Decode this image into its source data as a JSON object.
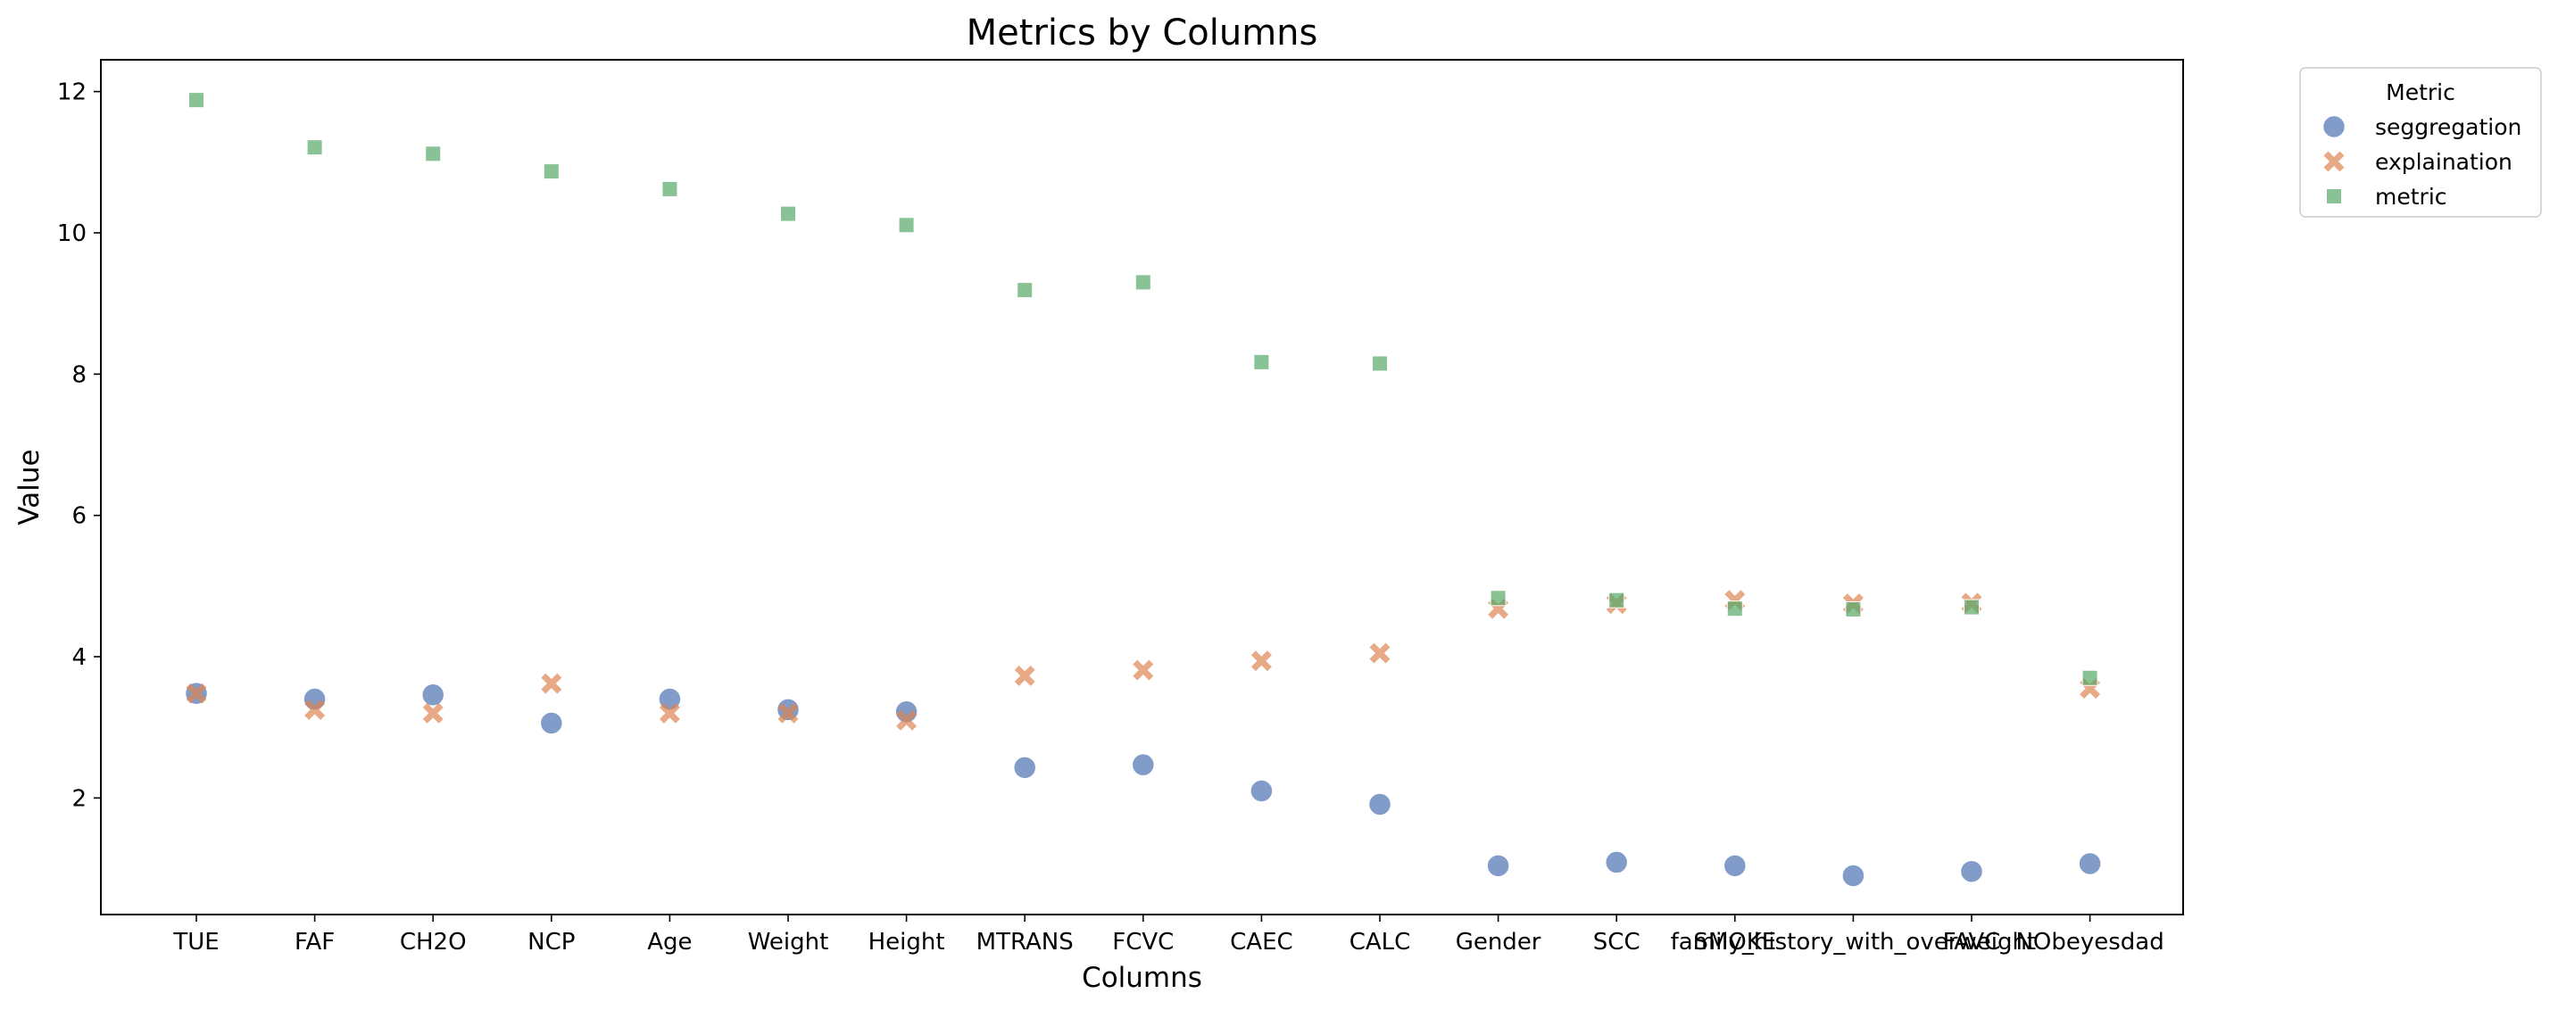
{
  "chart_data": {
    "type": "scatter",
    "title": "Metrics by Columns",
    "xlabel": "Columns",
    "ylabel": "Value",
    "categories": [
      "TUE",
      "FAF",
      "CH2O",
      "NCP",
      "Age",
      "Weight",
      "Height",
      "MTRANS",
      "FCVC",
      "CAEC",
      "CALC",
      "Gender",
      "SCC",
      "SMOKE",
      "family_history_with_overweight",
      "FAVC",
      "NObeyesdad"
    ],
    "ylim": [
      0.35,
      12.45
    ],
    "yticks": [
      2,
      4,
      6,
      8,
      10,
      12
    ],
    "grid": false,
    "legend": {
      "title": "Metric",
      "placement": "outside-top-right"
    },
    "series": [
      {
        "name": "seggregation",
        "marker": "circle",
        "color": "#4c72b0",
        "values": [
          3.48,
          3.4,
          3.46,
          3.06,
          3.4,
          3.25,
          3.22,
          2.43,
          2.47,
          2.1,
          1.91,
          1.04,
          1.09,
          1.04,
          0.9,
          0.96,
          1.07
        ]
      },
      {
        "name": "explaination",
        "marker": "x",
        "color": "#dd8452",
        "values": [
          3.48,
          3.25,
          3.2,
          3.62,
          3.2,
          3.2,
          3.1,
          3.73,
          3.81,
          3.94,
          4.05,
          4.68,
          4.75,
          4.8,
          4.75,
          4.76,
          3.55
        ]
      },
      {
        "name": "metric",
        "marker": "square",
        "color": "#55a868",
        "values": [
          11.88,
          11.21,
          11.12,
          10.87,
          10.62,
          10.27,
          10.11,
          9.19,
          9.3,
          8.17,
          8.15,
          4.83,
          4.8,
          4.68,
          4.67,
          4.7,
          3.7
        ]
      }
    ]
  }
}
